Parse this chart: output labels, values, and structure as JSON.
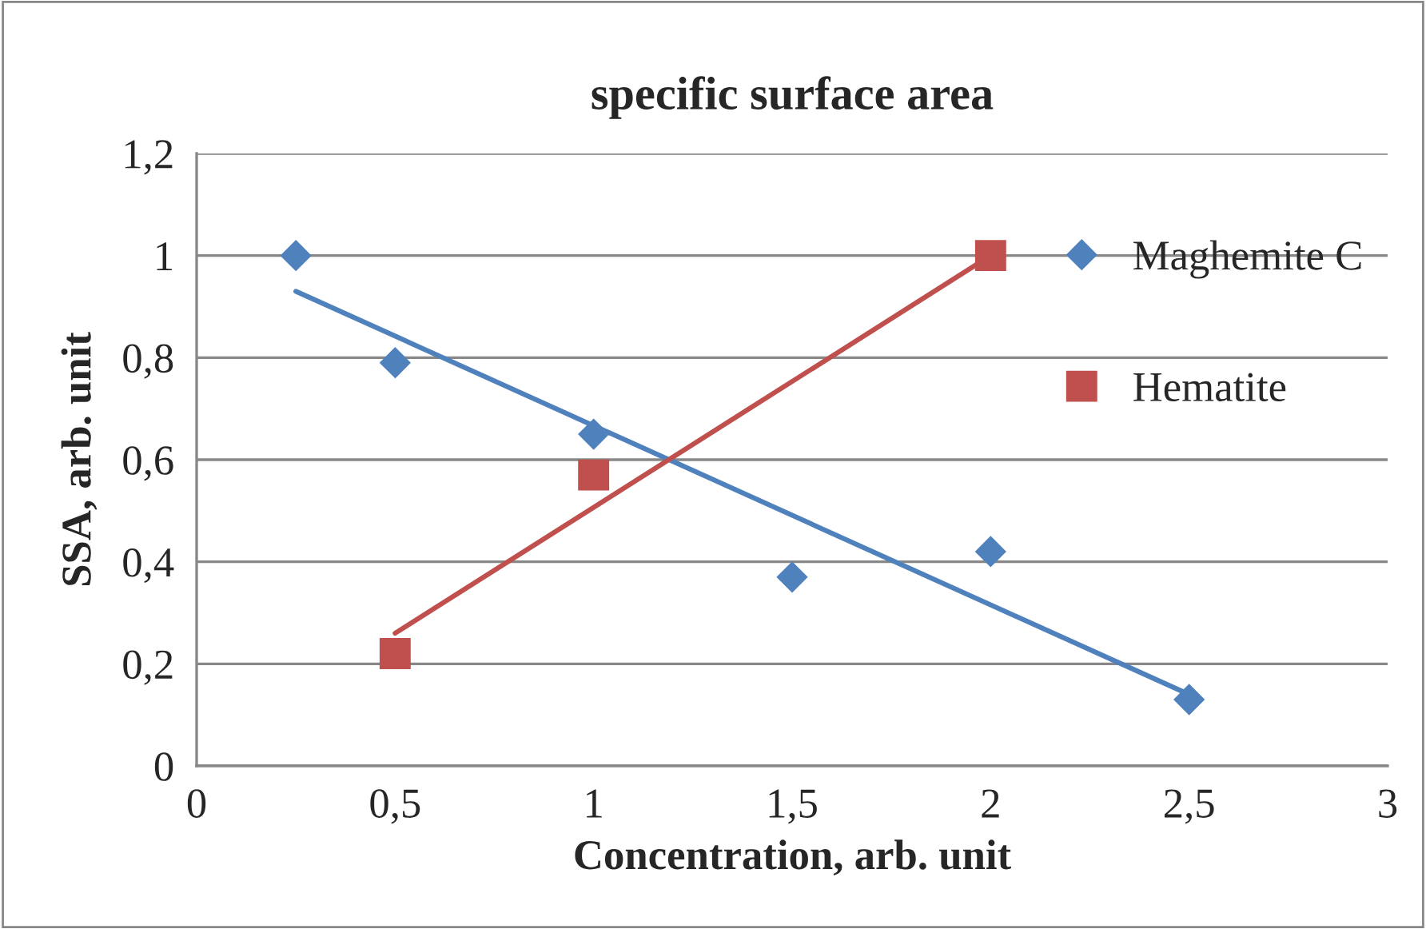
{
  "chart_data": {
    "type": "scatter",
    "title": "specific surface area",
    "xlabel": "Concentration, arb. unit",
    "ylabel": "SSA, arb. unit",
    "xlim": [
      0,
      3
    ],
    "xticks": [
      0,
      {
        "value": 0.5,
        "label": "0,5"
      },
      1,
      {
        "value": 1.5,
        "label": "1,5"
      },
      2,
      {
        "value": 2.5,
        "label": "2,5"
      },
      3
    ],
    "ylim": [
      0,
      1.2
    ],
    "yticks": [
      0,
      {
        "value": 0.2,
        "label": "0,2"
      },
      {
        "value": 0.4,
        "label": "0,4"
      },
      {
        "value": 0.6,
        "label": "0,6"
      },
      {
        "value": 0.8,
        "label": "0,8"
      },
      1,
      {
        "value": 1.2,
        "label": "1,2"
      }
    ],
    "grid": "y",
    "legend": "right",
    "series": [
      {
        "name": "Maghemite C",
        "marker": "diamond",
        "color": "#4f81bd",
        "x": [
          0.25,
          0.5,
          1.0,
          1.5,
          2.0,
          2.5
        ],
        "values": [
          1.0,
          0.79,
          0.65,
          0.37,
          0.42,
          0.13
        ]
      },
      {
        "name": "Hematite",
        "marker": "square",
        "color": "#c0504d",
        "x": [
          0.5,
          1.0,
          2.0
        ],
        "values": [
          0.22,
          0.57,
          1.0
        ]
      },
      {
        "type": "line",
        "marker": "none",
        "color": "#4f81bd",
        "x": [
          0.25,
          2.5
        ],
        "values": [
          0.93,
          0.14
        ]
      },
      {
        "type": "line",
        "marker": "none",
        "color": "#c0504d",
        "x": [
          0.5,
          2.0
        ],
        "values": [
          0.26,
          1.0
        ]
      }
    ]
  }
}
